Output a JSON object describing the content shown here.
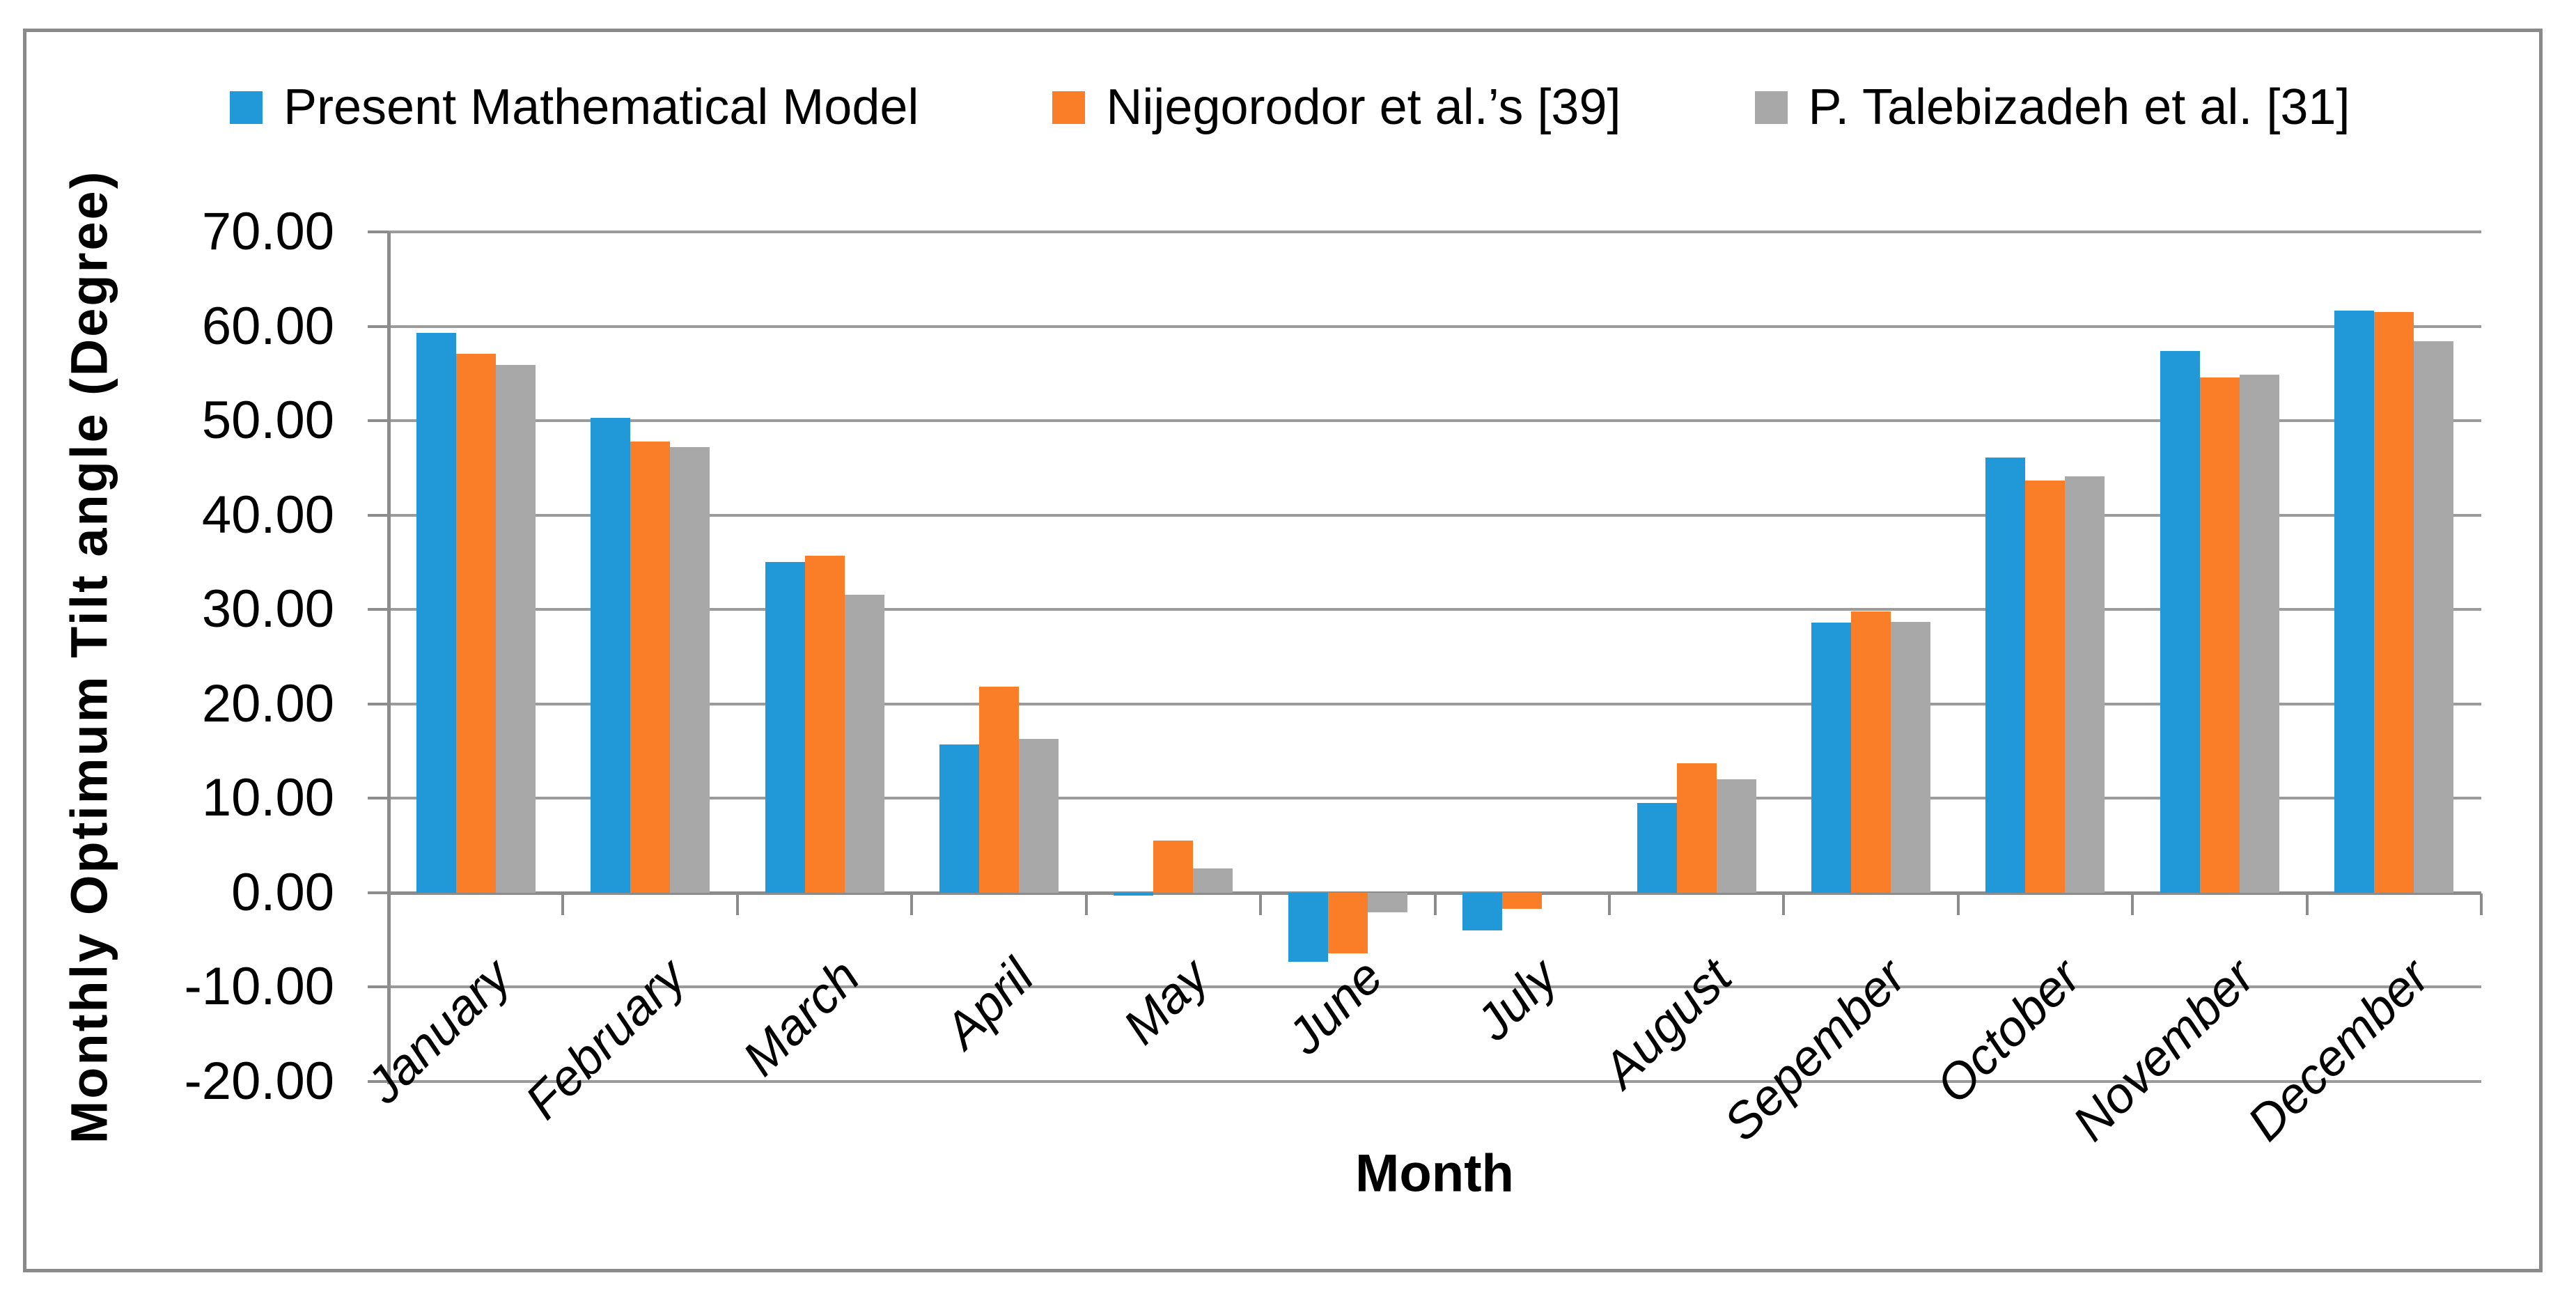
{
  "chart_data": {
    "type": "bar",
    "title": "",
    "xlabel": "Month",
    "ylabel": "Monthly Optimum Tilt angle (Degree)",
    "ylim": [
      -20,
      70
    ],
    "ytick_step": 10,
    "ytick_labels": [
      "70.00",
      "60.00",
      "50.00",
      "40.00",
      "30.00",
      "20.00",
      "10.00",
      "0.00",
      "-10.00",
      "-20.00"
    ],
    "grid": "horizontal-on",
    "legend_position": "top",
    "categories": [
      "January",
      "February",
      "March",
      "April",
      "May",
      "June",
      "July",
      "August",
      "Sepember",
      "October",
      "November",
      "December"
    ],
    "series": [
      {
        "name": "Present Mathematical Model",
        "color": "#2199d8",
        "values": [
          59.3,
          50.3,
          35.0,
          15.7,
          -0.3,
          -7.3,
          -4.0,
          9.5,
          28.6,
          46.1,
          57.4,
          61.7
        ]
      },
      {
        "name": "Nijegorodor et al.’s [39]",
        "color": "#fa7d28",
        "values": [
          57.1,
          47.8,
          35.7,
          21.8,
          5.5,
          -6.4,
          -1.7,
          13.7,
          29.8,
          43.7,
          54.6,
          61.5
        ]
      },
      {
        "name": "P. Talebizadeh et al. [31]",
        "color": "#a8a8a8",
        "values": [
          55.9,
          47.2,
          31.6,
          16.3,
          2.6,
          -2.1,
          0.0,
          12.0,
          28.7,
          44.1,
          54.9,
          58.4
        ]
      }
    ]
  },
  "colors": {
    "gridline": "#9b9b9b",
    "axis_line": "#8c8c8c",
    "figure_border": "#8a8a8a",
    "text": "#000000"
  }
}
